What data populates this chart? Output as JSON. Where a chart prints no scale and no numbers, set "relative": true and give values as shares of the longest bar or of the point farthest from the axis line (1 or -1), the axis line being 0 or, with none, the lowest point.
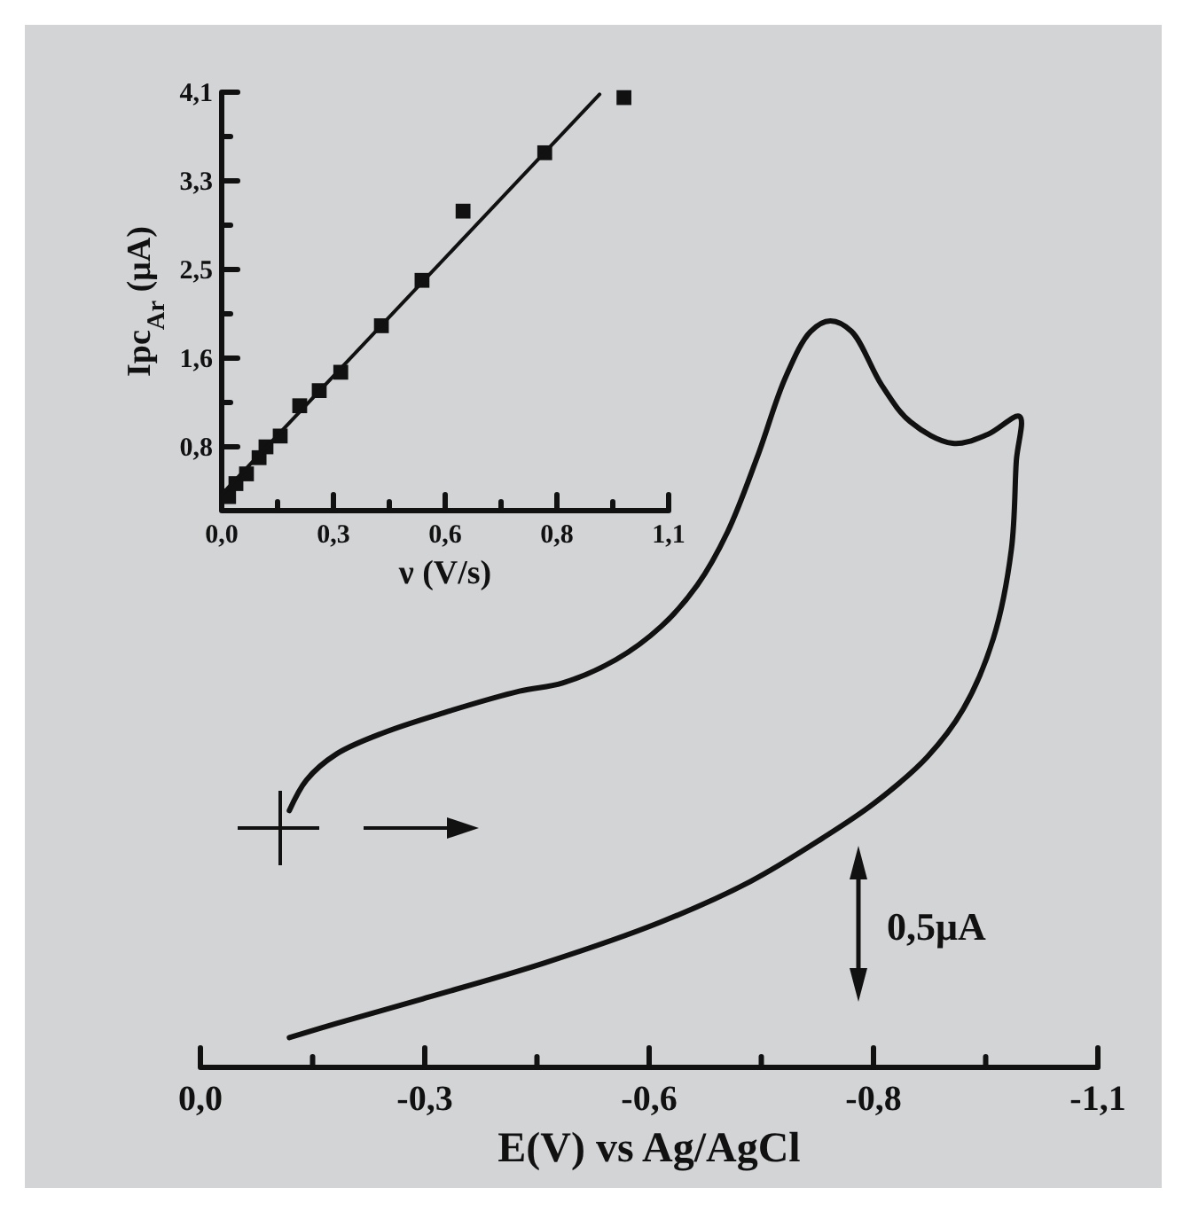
{
  "chart_data": [
    {
      "type": "line",
      "relative": true,
      "xlabel": "E(V) vs Ag/AgCl",
      "xlim": [
        0,
        -1.1
      ],
      "xticks": [
        {
          "value": 0,
          "label": "0,0"
        },
        {
          "value": -0.1375,
          "label": null
        },
        {
          "value": -0.275,
          "label": "-0,3"
        },
        {
          "value": -0.4125,
          "label": null
        },
        {
          "value": -0.55,
          "label": "-0,6"
        },
        {
          "value": -0.6875,
          "label": null
        },
        {
          "value": -0.825,
          "label": "-0,8"
        },
        {
          "value": -0.9625,
          "label": null
        },
        {
          "value": -1.1,
          "label": "-1,1"
        }
      ],
      "annotations": [
        "0,5μA"
      ],
      "series": [
        {
          "color": "#111111",
          "x": [
            -0.109,
            -0.13,
            -0.167,
            -0.226,
            -0.298,
            -0.391,
            -0.444,
            -0.509,
            -0.565,
            -0.609,
            -0.646,
            -0.683,
            -0.717,
            -0.748,
            -0.772,
            -0.798,
            -0.835,
            -0.87,
            -0.922,
            -0.965,
            -1.004,
            -1.0,
            -0.994,
            -0.972,
            -0.935,
            -0.891,
            -0.826,
            -0.761,
            -0.674,
            -0.565,
            -0.422,
            -0.276,
            -0.167,
            -0.109
          ],
          "values": [
            0.344,
            0.385,
            0.42,
            0.449,
            0.475,
            0.504,
            0.515,
            0.546,
            0.591,
            0.646,
            0.717,
            0.819,
            0.924,
            0.986,
            1,
            0.986,
            0.914,
            0.865,
            0.836,
            0.848,
            0.872,
            0.812,
            0.694,
            0.575,
            0.48,
            0.416,
            0.354,
            0.306,
            0.249,
            0.195,
            0.14,
            0.093,
            0.059,
            0.04
          ]
        }
      ]
    },
    {
      "type": "scatter",
      "xlabel": "ν (V/s)",
      "ylabel": "Ipc$_{Ar}$ (μA)",
      "xlim": [
        0,
        1.1
      ],
      "ylim": [
        0.23,
        4.1
      ],
      "xticks": [
        {
          "value": 0,
          "label": "0,0"
        },
        {
          "value": 0.1375,
          "label": null
        },
        {
          "value": 0.275,
          "label": "0,3"
        },
        {
          "value": 0.4125,
          "label": null
        },
        {
          "value": 0.55,
          "label": "0,6"
        },
        {
          "value": 0.6875,
          "label": null
        },
        {
          "value": 0.825,
          "label": "0,8"
        },
        {
          "value": 0.9625,
          "label": null
        },
        {
          "value": 1.1,
          "label": "1,1"
        }
      ],
      "yticks": [
        {
          "value": 0.41,
          "label": null
        },
        {
          "value": 0.82,
          "label": "0,8"
        },
        {
          "value": 1.23,
          "label": null
        },
        {
          "value": 1.64,
          "label": "1,6"
        },
        {
          "value": 2.05,
          "label": null
        },
        {
          "value": 2.46,
          "label": "2,5"
        },
        {
          "value": 2.87,
          "label": null
        },
        {
          "value": 3.28,
          "label": "3,3"
        },
        {
          "value": 3.69,
          "label": null
        },
        {
          "value": 4.1,
          "label": "4,1"
        }
      ],
      "series": [
        {
          "marker": "square",
          "color": "#111111",
          "x": [
            0.017,
            0.035,
            0.061,
            0.092,
            0.109,
            0.144,
            0.192,
            0.24,
            0.293,
            0.393,
            0.493,
            0.594,
            0.795,
            0.99
          ],
          "values": [
            0.36,
            0.48,
            0.57,
            0.72,
            0.82,
            0.92,
            1.2,
            1.34,
            1.51,
            1.94,
            2.36,
            3.0,
            3.54,
            4.05
          ]
        },
        {
          "type": "line",
          "color": "#111111",
          "x": [
            0,
            0.93
          ],
          "values": [
            0.38,
            4.08
          ]
        }
      ]
    }
  ]
}
